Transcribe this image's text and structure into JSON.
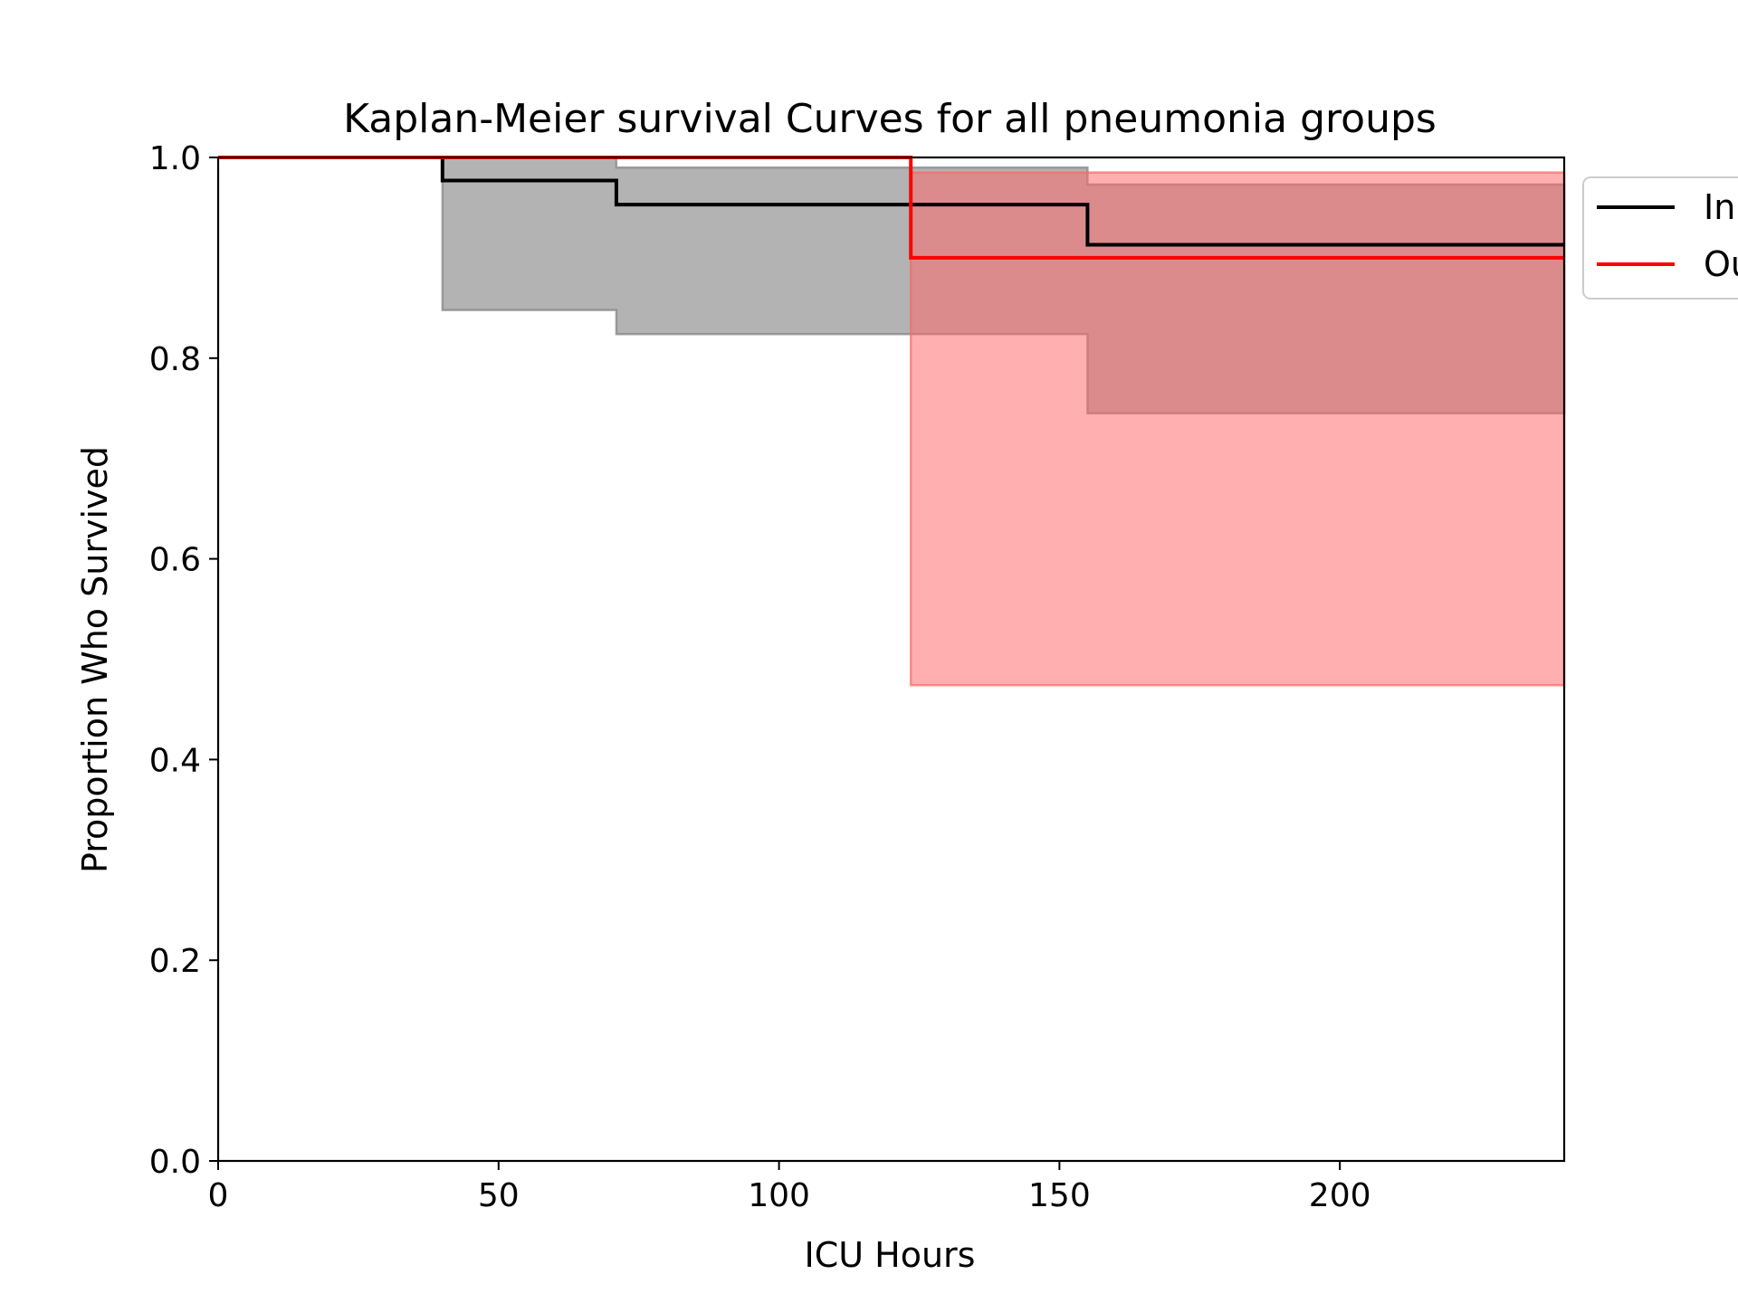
{
  "chart_data": {
    "type": "line",
    "title": "Kaplan-Meier survival Curves for all pneumonia groups",
    "xlabel": "ICU Hours",
    "ylabel": "Proportion Who Survived",
    "xlim": [
      0,
      240
    ],
    "ylim": [
      0.0,
      1.0
    ],
    "xticks": [
      0,
      50,
      100,
      150,
      200
    ],
    "xtick_labels": [
      "0",
      "50",
      "100",
      "150",
      "200"
    ],
    "yticks": [
      0.0,
      0.2,
      0.4,
      0.6,
      0.8,
      1.0
    ],
    "ytick_labels": [
      "0.0",
      "0.2",
      "0.4",
      "0.6",
      "0.8",
      "1.0"
    ],
    "grid": false,
    "legend_position": "outside right, top (partially cut off)",
    "series": [
      {
        "name": "In",
        "color": "#000000",
        "band_color": "#808080",
        "steps": [
          {
            "x": 0,
            "y": 1.0,
            "lower": 1.0,
            "upper": 1.0
          },
          {
            "x": 40,
            "y": 0.977,
            "lower": 0.848,
            "upper": 1.0
          },
          {
            "x": 71,
            "y": 0.953,
            "lower": 0.824,
            "upper": 0.99
          },
          {
            "x": 155,
            "y": 0.913,
            "lower": 0.745,
            "upper": 0.973
          }
        ]
      },
      {
        "name": "Ou",
        "color": "#ff0000",
        "band_color": "#ff6666",
        "steps": [
          {
            "x": 0,
            "y": 1.0,
            "lower": 1.0,
            "upper": 1.0
          },
          {
            "x": 123.5,
            "y": 0.9,
            "lower": 0.474,
            "upper": 0.985
          }
        ]
      }
    ]
  }
}
